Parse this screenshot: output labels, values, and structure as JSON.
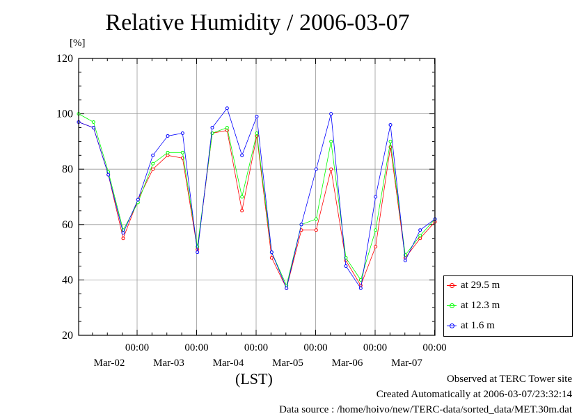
{
  "chart_data": {
    "type": "line",
    "title": "Relative Humidity / 2006-03-07",
    "ylabel": "[%]",
    "xlabel": "(LST)",
    "ylim": [
      20,
      120
    ],
    "yticks": [
      20,
      40,
      60,
      80,
      100,
      120
    ],
    "x_range_hours": [
      0,
      144
    ],
    "x_ticks": [
      {
        "time": "00:00",
        "date": "Mar-02"
      },
      {
        "time": "00:00",
        "date": "Mar-03"
      },
      {
        "time": "00:00",
        "date": "Mar-04"
      },
      {
        "time": "00:00",
        "date": "Mar-05"
      },
      {
        "time": "00:00",
        "date": "Mar-06"
      },
      {
        "time": "00:00",
        "date": "Mar-07"
      }
    ],
    "grid": true,
    "legend_position": "bottom-right",
    "x_hours": [
      0,
      6,
      12,
      18,
      24,
      30,
      36,
      42,
      48,
      54,
      60,
      66,
      72,
      78,
      84,
      90,
      96,
      102,
      108,
      114,
      120,
      126,
      132,
      138,
      144
    ],
    "series": [
      {
        "name": "at 29.5 m",
        "color": "#ff0000",
        "values": [
          97,
          95,
          78,
          55,
          69,
          80,
          85,
          84,
          51,
          93,
          94,
          65,
          92,
          48,
          37,
          58,
          58,
          80,
          47,
          38,
          52,
          88,
          48,
          55,
          61
        ]
      },
      {
        "name": "at 12.3 m",
        "color": "#00ff00",
        "values": [
          100,
          97,
          79,
          58,
          68,
          82,
          86,
          86,
          52,
          93,
          95,
          70,
          93,
          50,
          38,
          60,
          62,
          90,
          48,
          40,
          58,
          90,
          49,
          56,
          62
        ]
      },
      {
        "name": "at 1.6 m",
        "color": "#0000ff",
        "values": [
          97,
          95,
          78,
          57,
          69,
          85,
          92,
          93,
          50,
          95,
          102,
          85,
          99,
          50,
          37,
          60,
          80,
          100,
          45,
          37,
          70,
          96,
          47,
          58,
          62
        ]
      }
    ]
  },
  "footer": {
    "line1": "Observed at TERC Tower site",
    "line2": "Created Automatically at 2006-03-07/23:32:14",
    "line3": "Data source : /home/hoivo/new/TERC-data/sorted_data/MET.30m.dat"
  }
}
